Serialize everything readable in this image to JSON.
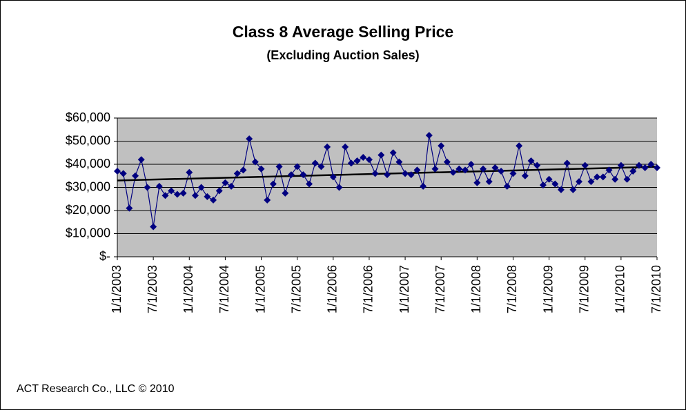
{
  "chart_data": {
    "type": "line",
    "title": "Class 8 Average Selling Price",
    "subtitle": "(Excluding Auction Sales)",
    "footer": "ACT Research Co., LLC © 2010",
    "categories": [
      "1/1/2003",
      null,
      null,
      null,
      null,
      null,
      "7/1/2003",
      null,
      null,
      null,
      null,
      null,
      "1/1/2004",
      null,
      null,
      null,
      null,
      null,
      "7/1/2004",
      null,
      null,
      null,
      null,
      null,
      "1/1/2005",
      null,
      null,
      null,
      null,
      null,
      "7/1/2005",
      null,
      null,
      null,
      null,
      null,
      "1/1/2006",
      null,
      null,
      null,
      null,
      null,
      "7/1/2006",
      null,
      null,
      null,
      null,
      null,
      "1/1/2007",
      null,
      null,
      null,
      null,
      null,
      "7/1/2007",
      null,
      null,
      null,
      null,
      null,
      "1/1/2008",
      null,
      null,
      null,
      null,
      null,
      "7/1/2008",
      null,
      null,
      null,
      null,
      null,
      "1/1/2009",
      null,
      null,
      null,
      null,
      null,
      "7/1/2009",
      null,
      null,
      null,
      null,
      null,
      "1/1/2010",
      null,
      null,
      null,
      null,
      null,
      "7/1/2010"
    ],
    "values": [
      37000,
      36000,
      21000,
      35000,
      42000,
      30000,
      13000,
      30500,
      26500,
      28500,
      27000,
      27500,
      36500,
      26500,
      30000,
      26000,
      24500,
      28500,
      32000,
      30500,
      36000,
      37500,
      51000,
      41000,
      38000,
      24500,
      31500,
      39000,
      27500,
      35500,
      39000,
      35500,
      31500,
      40500,
      39000,
      47500,
      34500,
      30000,
      47500,
      40500,
      41500,
      43000,
      42000,
      36000,
      44000,
      35500,
      45000,
      41000,
      36000,
      35500,
      37500,
      30500,
      52500,
      38000,
      48000,
      41000,
      36500,
      38000,
      37500,
      40000,
      32000,
      38000,
      32500,
      38500,
      37000,
      30500,
      36000,
      48000,
      35000,
      41500,
      39500,
      31000,
      33500,
      31500,
      29000,
      40500,
      29000,
      32500,
      39500,
      32500,
      34500,
      34500,
      37500,
      33500,
      39500,
      33500,
      37000,
      39500,
      38500,
      40000,
      38500
    ],
    "color": "#000080",
    "trendline": [
      33000,
      38900
    ],
    "trendline_color": "#000000",
    "ylim": [
      0,
      60000
    ],
    "yticks": [
      {
        "value": 0,
        "label": "$-"
      },
      {
        "value": 10000,
        "label": "$10,000"
      },
      {
        "value": 20000,
        "label": "$20,000"
      },
      {
        "value": 30000,
        "label": "$30,000"
      },
      {
        "value": 40000,
        "label": "$40,000"
      },
      {
        "value": 50000,
        "label": "$50,000"
      },
      {
        "value": 60000,
        "label": "$60,000"
      }
    ],
    "grid": true
  }
}
